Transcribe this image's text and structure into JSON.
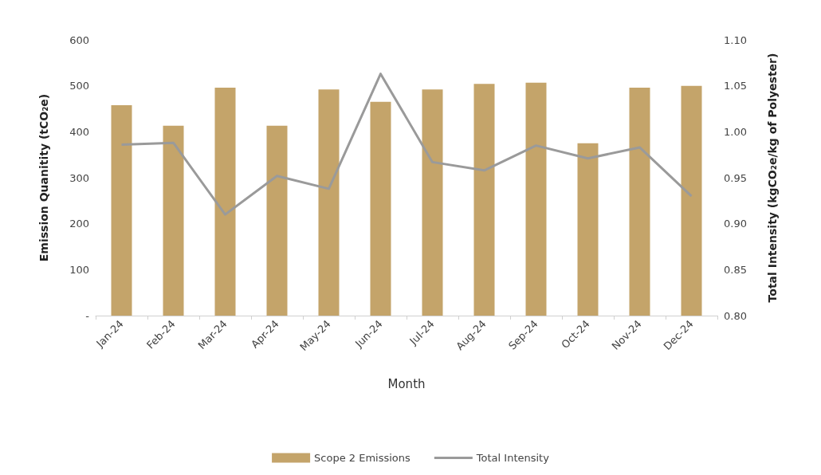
{
  "chart_data": {
    "type": "bar",
    "xlabel": "Month",
    "ylabel": "Emission Quanitity (tCO₂e)",
    "y2label": "Total Intensity (kgCO₂e/kg of Polyester)",
    "categories": [
      "Jan-24",
      "Feb-24",
      "Mar-24",
      "Apr-24",
      "May-24",
      "Jun-24",
      "Jul-24",
      "Aug-24",
      "Sep-24",
      "Oct-24",
      "Nov-24",
      "Dec-24"
    ],
    "series": [
      {
        "name": "Scope 2 Emissions",
        "color": "#c4a46a",
        "values": [
          458,
          413,
          496,
          413,
          492,
          465,
          492,
          504,
          507,
          375,
          496,
          500
        ]
      },
      {
        "name": "Total Intensity",
        "type": "line",
        "axis": "y2",
        "color": "#9a9a9a",
        "marker": "none",
        "values": [
          0.986,
          0.988,
          0.91,
          0.952,
          0.938,
          1.063,
          0.967,
          0.958,
          0.985,
          0.971,
          0.983,
          0.93
        ]
      }
    ],
    "ylim": [
      0,
      600
    ],
    "yticks": [
      {
        "value": 0,
        "label": "-"
      },
      100,
      200,
      300,
      400,
      500,
      600
    ],
    "y2lim": [
      0.8,
      1.1
    ],
    "y2ticks": [
      {
        "value": 0.8,
        "label": "0.80"
      },
      {
        "value": 0.85,
        "label": "0.85"
      },
      {
        "value": 0.9,
        "label": "0.90"
      },
      {
        "value": 0.95,
        "label": "0.95"
      },
      {
        "value": 1.0,
        "label": "1.00"
      },
      {
        "value": 1.05,
        "label": "1.05"
      },
      {
        "value": 1.1,
        "label": "1.10"
      }
    ],
    "grid": false,
    "legend": "bottom"
  }
}
